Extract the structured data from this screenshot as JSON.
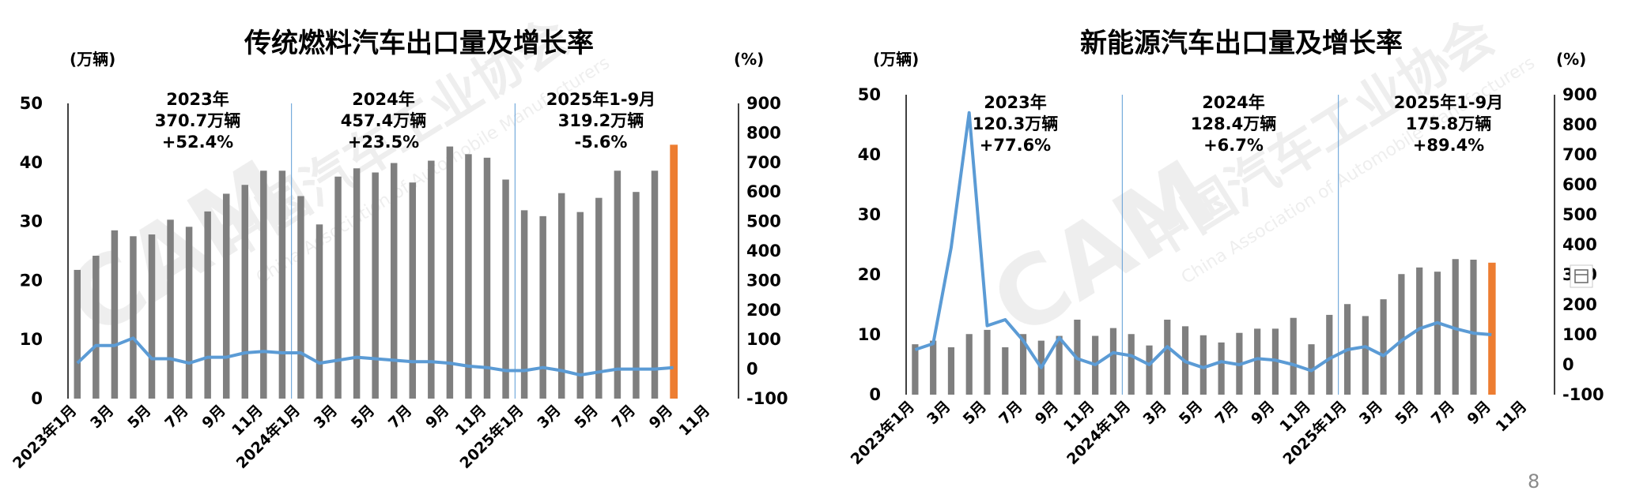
{
  "page_number": "8",
  "colors": {
    "bar": "#7f7f7f",
    "bar_highlight": "#ed7d31",
    "line": "#5b9bd5",
    "negative": "#ff0000"
  },
  "chart_data": [
    {
      "type": "bar",
      "title": "传统燃料汽车出口量及增长率",
      "left_unit": "(万辆)",
      "right_unit": "(%)",
      "ylim": [
        0,
        50
      ],
      "y_ticks": [
        "0",
        "10",
        "20",
        "30",
        "40",
        "50"
      ],
      "y2lim": [
        -100,
        900
      ],
      "y2_ticks": [
        "-100",
        "0",
        "100",
        "200",
        "300",
        "400",
        "500",
        "600",
        "700",
        "800",
        "900"
      ],
      "x_tick_labels": [
        "2023年1月",
        "3月",
        "5月",
        "7月",
        "9月",
        "11月",
        "2024年1月",
        "3月",
        "5月",
        "7月",
        "9月",
        "11月",
        "2025年1月",
        "3月",
        "5月",
        "7月",
        "9月",
        "11月"
      ],
      "series": [
        {
          "type": "bar",
          "values": [
            21.8,
            24.2,
            28.5,
            27.5,
            27.8,
            30.3,
            29.1,
            31.7,
            34.7,
            36.2,
            38.6,
            38.6,
            34.3,
            29.5,
            37.6,
            39.0,
            38.3,
            39.9,
            36.6,
            40.3,
            42.7,
            41.4,
            40.8,
            37.1,
            31.9,
            30.9,
            34.8,
            31.6,
            34.0,
            38.6,
            35.0,
            38.6,
            43.0
          ]
        },
        {
          "type": "line",
          "values": [
            20,
            80,
            80,
            105,
            35,
            35,
            20,
            40,
            40,
            55,
            60,
            55,
            55,
            20,
            30,
            40,
            35,
            30,
            25,
            25,
            20,
            10,
            5,
            -5,
            -5,
            5,
            -5,
            -20,
            -10,
            0,
            0,
            0,
            5
          ]
        }
      ],
      "highlight_index": 32,
      "annotations": [
        {
          "lines": [
            "2023年",
            "370.7万辆",
            "+52.4%"
          ]
        },
        {
          "lines": [
            "2024年",
            "457.4万辆",
            "+23.5%"
          ]
        },
        {
          "lines": [
            "2025年1-9月",
            "319.2万辆",
            "-5.6%"
          ],
          "last_line_color": "#ff0000"
        }
      ]
    },
    {
      "type": "bar",
      "title": "新能源汽车出口量及增长率",
      "left_unit": "(万辆)",
      "right_unit": "(%)",
      "ylim": [
        0,
        50
      ],
      "y_ticks": [
        "0",
        "10",
        "20",
        "30",
        "40",
        "50"
      ],
      "y2lim": [
        -100,
        900
      ],
      "y2_ticks": [
        "-100",
        "0",
        "100",
        "200",
        "300",
        "400",
        "500",
        "600",
        "700",
        "800",
        "900"
      ],
      "x_tick_labels": [
        "2023年1月",
        "3月",
        "5月",
        "7月",
        "9月",
        "11月",
        "2024年1月",
        "3月",
        "5月",
        "7月",
        "9月",
        "11月",
        "2025年1月",
        "3月",
        "5月",
        "7月",
        "9月",
        "11月"
      ],
      "series": [
        {
          "type": "bar",
          "values": [
            8.4,
            9.0,
            7.9,
            10.1,
            10.8,
            7.9,
            10.1,
            9.0,
            9.8,
            12.5,
            9.8,
            11.1,
            10.1,
            8.2,
            12.5,
            11.4,
            9.9,
            8.7,
            10.3,
            11.0,
            11.0,
            12.8,
            8.4,
            13.3,
            15.1,
            13.1,
            15.9,
            20.1,
            21.2,
            20.5,
            22.6,
            22.5,
            22.0
          ]
        },
        {
          "type": "line",
          "values": [
            50,
            70,
            390,
            840,
            130,
            150,
            80,
            -10,
            90,
            20,
            0,
            40,
            30,
            0,
            60,
            10,
            -10,
            10,
            0,
            20,
            15,
            0,
            -20,
            20,
            50,
            60,
            30,
            80,
            120,
            140,
            120,
            105,
            100
          ]
        }
      ],
      "highlight_index": 32,
      "annotations": [
        {
          "lines": [
            "2023年",
            "120.3万辆",
            "+77.6%"
          ]
        },
        {
          "lines": [
            "2024年",
            "128.4万辆",
            "+6.7%"
          ]
        },
        {
          "lines": [
            "2025年1-9月",
            "175.8万辆",
            "+89.4%"
          ]
        }
      ]
    }
  ]
}
